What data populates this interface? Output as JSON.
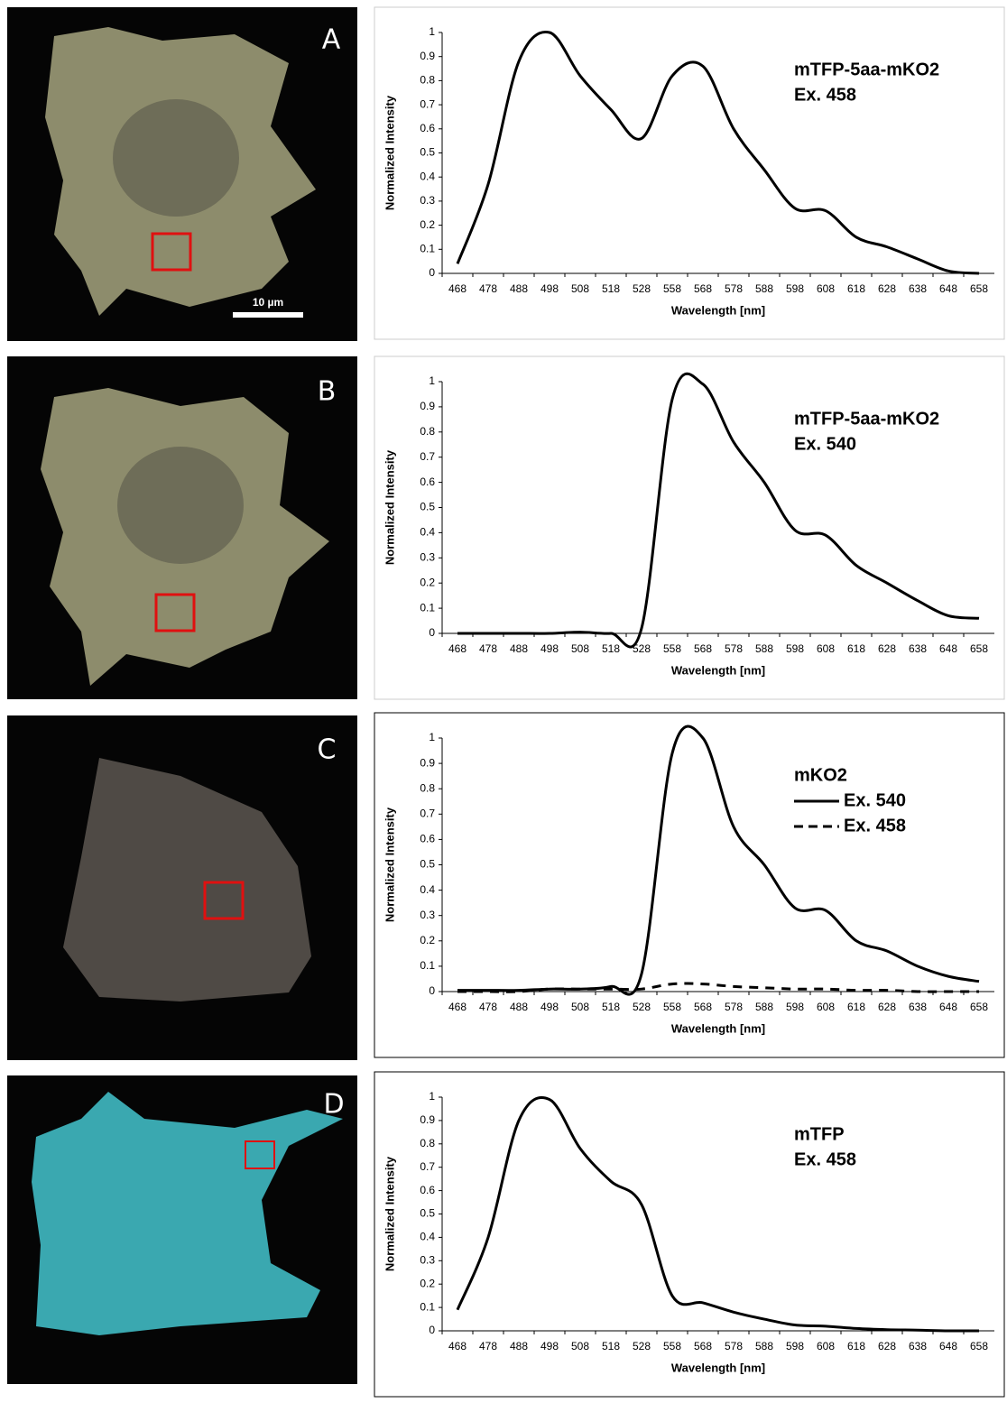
{
  "images": [
    {
      "label": "A",
      "scale_bar": "10 µm"
    },
    {
      "label": "B"
    },
    {
      "label": "C"
    },
    {
      "label": "D"
    }
  ],
  "chart_data": [
    {
      "type": "line",
      "annotations": [
        "mTFP-5aa-mKO2",
        "Ex. 458"
      ],
      "x_label": "Wavelength [nm]",
      "y_label": "Normalized Intensity",
      "categories": [
        468,
        478,
        488,
        498,
        508,
        518,
        528,
        558,
        568,
        578,
        588,
        598,
        608,
        618,
        628,
        638,
        648,
        658
      ],
      "values": [
        0.04,
        0.37,
        0.88,
        1.0,
        0.82,
        0.68,
        0.56,
        0.82,
        0.86,
        0.6,
        0.43,
        0.27,
        0.26,
        0.15,
        0.11,
        0.06,
        0.01,
        0
      ],
      "color": "#000000",
      "ylim": [
        0,
        1
      ],
      "yticks": [
        0,
        0.1,
        0.2,
        0.3,
        0.4,
        0.5,
        0.6,
        0.7,
        0.8,
        0.9,
        1
      ]
    },
    {
      "type": "line",
      "annotations": [
        "mTFP-5aa-mKO2",
        "Ex. 540"
      ],
      "x_label": "Wavelength [nm]",
      "y_label": "Normalized Intensity",
      "categories": [
        468,
        478,
        488,
        498,
        508,
        518,
        528,
        558,
        568,
        578,
        588,
        598,
        608,
        618,
        628,
        638,
        648,
        658
      ],
      "values": [
        0,
        0,
        0,
        0,
        0.005,
        0,
        0.02,
        0.93,
        0.99,
        0.76,
        0.6,
        0.41,
        0.39,
        0.27,
        0.2,
        0.13,
        0.07,
        0.06
      ],
      "color": "#000000",
      "ylim": [
        0,
        1
      ],
      "yticks": [
        0,
        0.1,
        0.2,
        0.3,
        0.4,
        0.5,
        0.6,
        0.7,
        0.8,
        0.9,
        1
      ]
    },
    {
      "type": "line",
      "annotations": [
        "mKO2"
      ],
      "x_label": "Wavelength [nm]",
      "y_label": "Normalized Intensity",
      "categories": [
        468,
        478,
        488,
        498,
        508,
        518,
        528,
        558,
        568,
        578,
        588,
        598,
        608,
        618,
        628,
        638,
        648,
        658
      ],
      "series": [
        {
          "name": "Ex. 540",
          "color": "#000000",
          "style": "solid",
          "values": [
            0.005,
            0.005,
            0.005,
            0.01,
            0.01,
            0.02,
            0.07,
            0.94,
            1.0,
            0.65,
            0.5,
            0.33,
            0.32,
            0.2,
            0.16,
            0.1,
            0.06,
            0.04
          ]
        },
        {
          "name": "Ex. 458",
          "color": "#000000",
          "style": "dashed",
          "values": [
            0,
            0,
            0,
            0.01,
            0.01,
            0.01,
            0.01,
            0.03,
            0.03,
            0.02,
            0.015,
            0.01,
            0.01,
            0.005,
            0.005,
            0,
            0,
            0
          ]
        }
      ],
      "ylim": [
        0,
        1
      ],
      "yticks": [
        0,
        0.1,
        0.2,
        0.3,
        0.4,
        0.5,
        0.6,
        0.7,
        0.8,
        0.9,
        1
      ]
    },
    {
      "type": "line",
      "annotations": [
        "mTFP",
        "Ex. 458"
      ],
      "x_label": "Wavelength [nm]",
      "y_label": "Normalized Intensity",
      "categories": [
        468,
        478,
        488,
        498,
        508,
        518,
        528,
        558,
        568,
        578,
        588,
        598,
        608,
        618,
        628,
        638,
        648,
        658
      ],
      "values": [
        0.09,
        0.4,
        0.9,
        0.99,
        0.78,
        0.64,
        0.54,
        0.15,
        0.12,
        0.08,
        0.05,
        0.025,
        0.02,
        0.01,
        0.005,
        0.003,
        0,
        0
      ],
      "color": "#000000",
      "ylim": [
        0,
        1
      ],
      "yticks": [
        0,
        0.1,
        0.2,
        0.3,
        0.4,
        0.5,
        0.6,
        0.7,
        0.8,
        0.9,
        1
      ]
    }
  ]
}
